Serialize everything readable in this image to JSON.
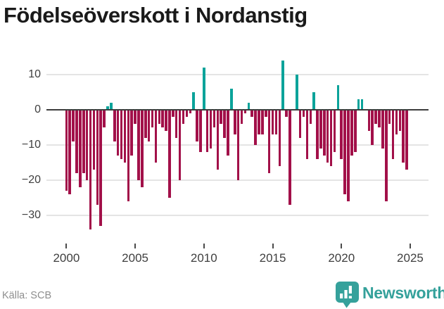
{
  "title": "Födelseöverskott i Nordanstig",
  "source": "Källa: SCB",
  "branding": {
    "name": "Newsworthy",
    "logo_icon": "bar-chart-speech-bubble-icon",
    "color": "#35a19b"
  },
  "colors": {
    "positive": "#0ba39a",
    "negative": "#a21049",
    "zero_line": "#3d3d3d",
    "gridline": "#e4e4e4",
    "axis_text": "#3f3f3f",
    "title_text": "#1a1a1a",
    "source_text": "#8e8e8e"
  },
  "chart_data": {
    "type": "bar",
    "title": "Födelseöverskott i Nordanstig",
    "xlabel": "",
    "ylabel": "",
    "frequency": "quarterly",
    "start": "2000Q1",
    "end": "2024Q4",
    "grid": "horizontal",
    "legend": "none",
    "ylim": [
      -37,
      16
    ],
    "y_ticks": [
      10,
      0,
      -10,
      -20,
      -30
    ],
    "y_tick_labels": [
      "10",
      "0",
      "−10",
      "−20",
      "−30"
    ],
    "x_tick_years": [
      2000,
      2005,
      2010,
      2015,
      2020,
      2025
    ],
    "x_tick_labels": [
      "2000",
      "2005",
      "2010",
      "2015",
      "2020",
      "2025"
    ],
    "quarters": [
      "2000Q1",
      "2000Q2",
      "2000Q3",
      "2000Q4",
      "2001Q1",
      "2001Q2",
      "2001Q3",
      "2001Q4",
      "2002Q1",
      "2002Q2",
      "2002Q3",
      "2002Q4",
      "2003Q1",
      "2003Q2",
      "2003Q3",
      "2003Q4",
      "2004Q1",
      "2004Q2",
      "2004Q3",
      "2004Q4",
      "2005Q1",
      "2005Q2",
      "2005Q3",
      "2005Q4",
      "2006Q1",
      "2006Q2",
      "2006Q3",
      "2006Q4",
      "2007Q1",
      "2007Q2",
      "2007Q3",
      "2007Q4",
      "2008Q1",
      "2008Q2",
      "2008Q3",
      "2008Q4",
      "2009Q1",
      "2009Q2",
      "2009Q3",
      "2009Q4",
      "2010Q1",
      "2010Q2",
      "2010Q3",
      "2010Q4",
      "2011Q1",
      "2011Q2",
      "2011Q3",
      "2011Q4",
      "2012Q1",
      "2012Q2",
      "2012Q3",
      "2012Q4",
      "2013Q1",
      "2013Q2",
      "2013Q3",
      "2013Q4",
      "2014Q1",
      "2014Q2",
      "2014Q3",
      "2014Q4",
      "2015Q1",
      "2015Q2",
      "2015Q3",
      "2015Q4",
      "2016Q1",
      "2016Q2",
      "2016Q3",
      "2016Q4",
      "2017Q1",
      "2017Q2",
      "2017Q3",
      "2017Q4",
      "2018Q1",
      "2018Q2",
      "2018Q3",
      "2018Q4",
      "2019Q1",
      "2019Q2",
      "2019Q3",
      "2019Q4",
      "2020Q1",
      "2020Q2",
      "2020Q3",
      "2020Q4",
      "2021Q1",
      "2021Q2",
      "2021Q3",
      "2021Q4",
      "2022Q1",
      "2022Q2",
      "2022Q3",
      "2022Q4",
      "2023Q1",
      "2023Q2",
      "2023Q3",
      "2023Q4",
      "2024Q1",
      "2024Q2",
      "2024Q3",
      "2024Q4"
    ],
    "values": [
      -23,
      -24,
      -9,
      -18,
      -22,
      -18,
      -20,
      -34,
      -17,
      -27,
      -33,
      -5,
      1,
      2,
      -9,
      -13,
      -14,
      -15,
      -26,
      -13,
      -4,
      -20,
      -22,
      -8,
      -9,
      -5,
      -15,
      -4,
      -5,
      -6,
      -25,
      -2,
      -8,
      -20,
      -4,
      -2,
      -1,
      5,
      -9,
      -12,
      12,
      -12,
      -11,
      -5,
      -17,
      -4,
      -8,
      -13,
      6,
      -7,
      -20,
      -4,
      -1,
      2,
      -2,
      -10,
      -7,
      -7,
      -2,
      -18,
      -7,
      -7,
      -16,
      14,
      -2,
      -27,
      0,
      10,
      -8,
      -2,
      -14,
      -4,
      5,
      -14,
      -11,
      -13,
      -15,
      -16,
      -12,
      7,
      -14,
      -24,
      -26,
      -13,
      -12,
      3,
      3,
      0,
      -6,
      -10,
      -4,
      -5,
      -11,
      -26,
      -4,
      -14,
      -7,
      -6,
      -15,
      -17
    ]
  }
}
